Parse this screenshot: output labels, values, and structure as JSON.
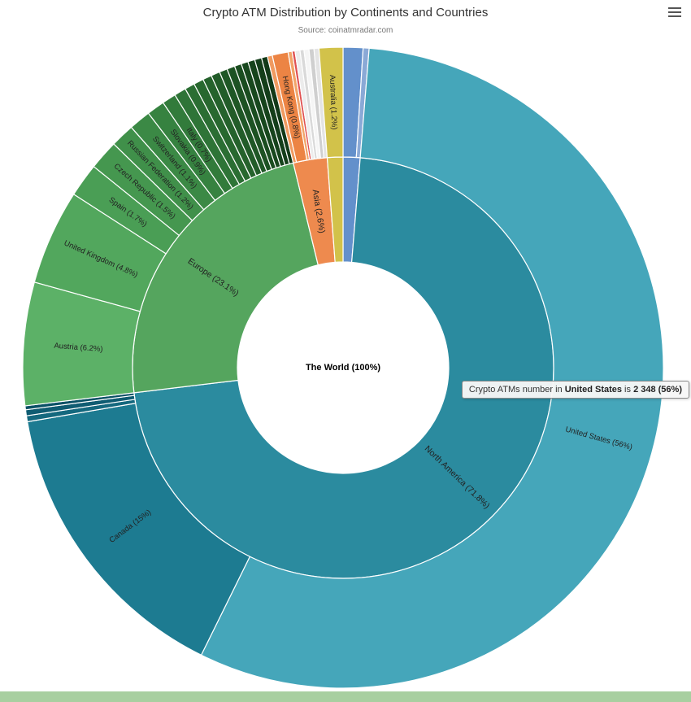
{
  "header": {
    "title": "Crypto ATM Distribution by Continents and Countries",
    "source": "Source: coinatmradar.com"
  },
  "menu": {
    "icon": "hamburger-icon"
  },
  "tooltip": {
    "prefix": "Crypto ATMs number in ",
    "country": "United States",
    "middle": " is ",
    "value": "2 348 (56%)"
  },
  "chart_data": {
    "type": "sunburst",
    "title": "Crypto ATM Distribution by Continents and Countries",
    "center_label": "The World (100%)",
    "unit": "%",
    "levels": [
      "continent",
      "country"
    ],
    "label_color": "#222222",
    "continents": [
      {
        "label": "",
        "value": 1.3,
        "color": "#6390cb",
        "children": [
          {
            "label": "",
            "value": 1.0,
            "color": "#6390cb"
          },
          {
            "label": "",
            "value": 0.3,
            "color": "#8aa9d6"
          }
        ]
      },
      {
        "label": "North America (71.8%)",
        "value": 71.8,
        "color": "#2b8b9f",
        "children": [
          {
            "label": "United States (56%)",
            "value": 56,
            "color": "#45a6ba"
          },
          {
            "label": "Canada (15%)",
            "value": 15,
            "color": "#1d7b91"
          },
          {
            "label": "",
            "value": 0.3,
            "color": "#14687e"
          },
          {
            "label": "",
            "value": 0.3,
            "color": "#0f5c72"
          },
          {
            "label": "",
            "value": 0.2,
            "color": "#0a5166"
          }
        ]
      },
      {
        "label": "Europe (23.1%)",
        "value": 23.1,
        "color": "#55a55e",
        "children": [
          {
            "label": "Austria (6.2%)",
            "value": 6.2,
            "color": "#5cb167"
          },
          {
            "label": "United Kingdom (4.8%)",
            "value": 4.8,
            "color": "#52a75d"
          },
          {
            "label": "Spain (1.7%)",
            "value": 1.7,
            "color": "#4a9e55"
          },
          {
            "label": "Czech Republic (1.5%)",
            "value": 1.5,
            "color": "#45974f"
          },
          {
            "label": "Russian Federation (1.2%)",
            "value": 1.2,
            "color": "#40904a"
          },
          {
            "label": "Switzerland (1.1%)",
            "value": 1.1,
            "color": "#3b8945"
          },
          {
            "label": "Slovakia (0.9%)",
            "value": 0.9,
            "color": "#368240"
          },
          {
            "label": "Italy (0.7%)",
            "value": 0.7,
            "color": "#327b3b"
          },
          {
            "label": "",
            "value": 0.6,
            "color": "#2e7437"
          },
          {
            "label": "",
            "value": 0.5,
            "color": "#2b6e33"
          },
          {
            "label": "",
            "value": 0.5,
            "color": "#28682f"
          },
          {
            "label": "",
            "value": 0.45,
            "color": "#25622c"
          },
          {
            "label": "",
            "value": 0.45,
            "color": "#225c29"
          },
          {
            "label": "",
            "value": 0.4,
            "color": "#1f5726"
          },
          {
            "label": "",
            "value": 0.4,
            "color": "#1d5223"
          },
          {
            "label": "",
            "value": 0.35,
            "color": "#1a4d20"
          },
          {
            "label": "",
            "value": 0.35,
            "color": "#18481e"
          },
          {
            "label": "",
            "value": 0.35,
            "color": "#16431c"
          },
          {
            "label": "",
            "value": 0.35,
            "color": "#143e1a"
          },
          {
            "label": "",
            "value": 0.3,
            "color": "#123918"
          }
        ]
      },
      {
        "label": "Asia (2.6%)",
        "value": 2.6,
        "color": "#ee8a4e",
        "children": [
          {
            "label": "",
            "value": 0.25,
            "color": "#f09a60"
          },
          {
            "label": "Hong Kong (0.8%)",
            "value": 0.8,
            "color": "#ec8444"
          },
          {
            "label": "",
            "value": 0.2,
            "color": "#f2a468"
          },
          {
            "label": "",
            "value": 0.15,
            "color": "#e05252"
          },
          {
            "label": "",
            "value": 0.25,
            "color": "#ececec"
          },
          {
            "label": "",
            "value": 0.2,
            "color": "#d9d9d9"
          },
          {
            "label": "",
            "value": 0.25,
            "color": "#f5f5f5"
          },
          {
            "label": "",
            "value": 0.25,
            "color": "#cfcfcf"
          },
          {
            "label": "",
            "value": 0.25,
            "color": "#e4e4e4"
          }
        ]
      },
      {
        "label": "",
        "value": 1.2,
        "color": "#d2c24a",
        "children": [
          {
            "label": "Australia (1.2%)",
            "value": 1.2,
            "color": "#d2c24a"
          }
        ]
      }
    ]
  }
}
